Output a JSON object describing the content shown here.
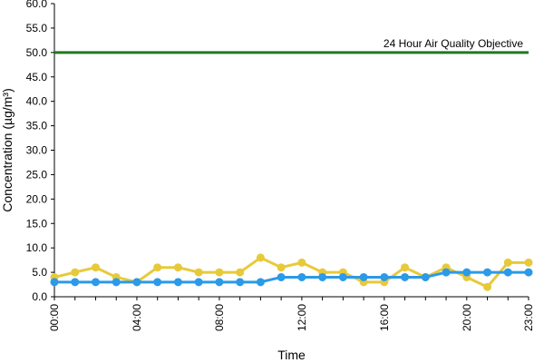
{
  "chart_data": {
    "type": "line",
    "xlabel": "Time",
    "ylabel": "Concentration (µg/m³)",
    "x": [
      0,
      1,
      2,
      3,
      4,
      5,
      6,
      7,
      8,
      9,
      10,
      11,
      12,
      13,
      14,
      15,
      16,
      17,
      18,
      19,
      20,
      21,
      22,
      23
    ],
    "x_tick_labels": [
      "00:00",
      "04:00",
      "08:00",
      "12:00",
      "16:00",
      "20:00",
      "23:00"
    ],
    "x_tick_positions": [
      0,
      4,
      8,
      12,
      16,
      20,
      23
    ],
    "y_tick_labels": [
      "0.0",
      "5.0",
      "10.0",
      "15.0",
      "20.0",
      "25.0",
      "30.0",
      "35.0",
      "40.0",
      "45.0",
      "50.0",
      "55.0",
      "60.0"
    ],
    "y_tick_values": [
      0,
      5,
      10,
      15,
      20,
      25,
      30,
      35,
      40,
      45,
      50,
      55,
      60
    ],
    "xlim": [
      0,
      23
    ],
    "ylim": [
      0,
      60
    ],
    "grid": false,
    "series": [
      {
        "color": "#e8c93a",
        "values": [
          4,
          5,
          6,
          4,
          3,
          6,
          6,
          5,
          5,
          5,
          8,
          6,
          7,
          5,
          5,
          3,
          3,
          6,
          4,
          6,
          4,
          2,
          7,
          7
        ]
      },
      {
        "color": "#2b9ae8",
        "values": [
          3,
          3,
          3,
          3,
          3,
          3,
          3,
          3,
          3,
          3,
          3,
          4,
          4,
          4,
          4,
          4,
          4,
          4,
          4,
          5,
          5,
          5,
          5,
          5
        ]
      }
    ],
    "reference_lines": [
      {
        "value": 50,
        "label": "24 Hour Air Quality Objective",
        "color": "#1f7a1f"
      }
    ]
  }
}
